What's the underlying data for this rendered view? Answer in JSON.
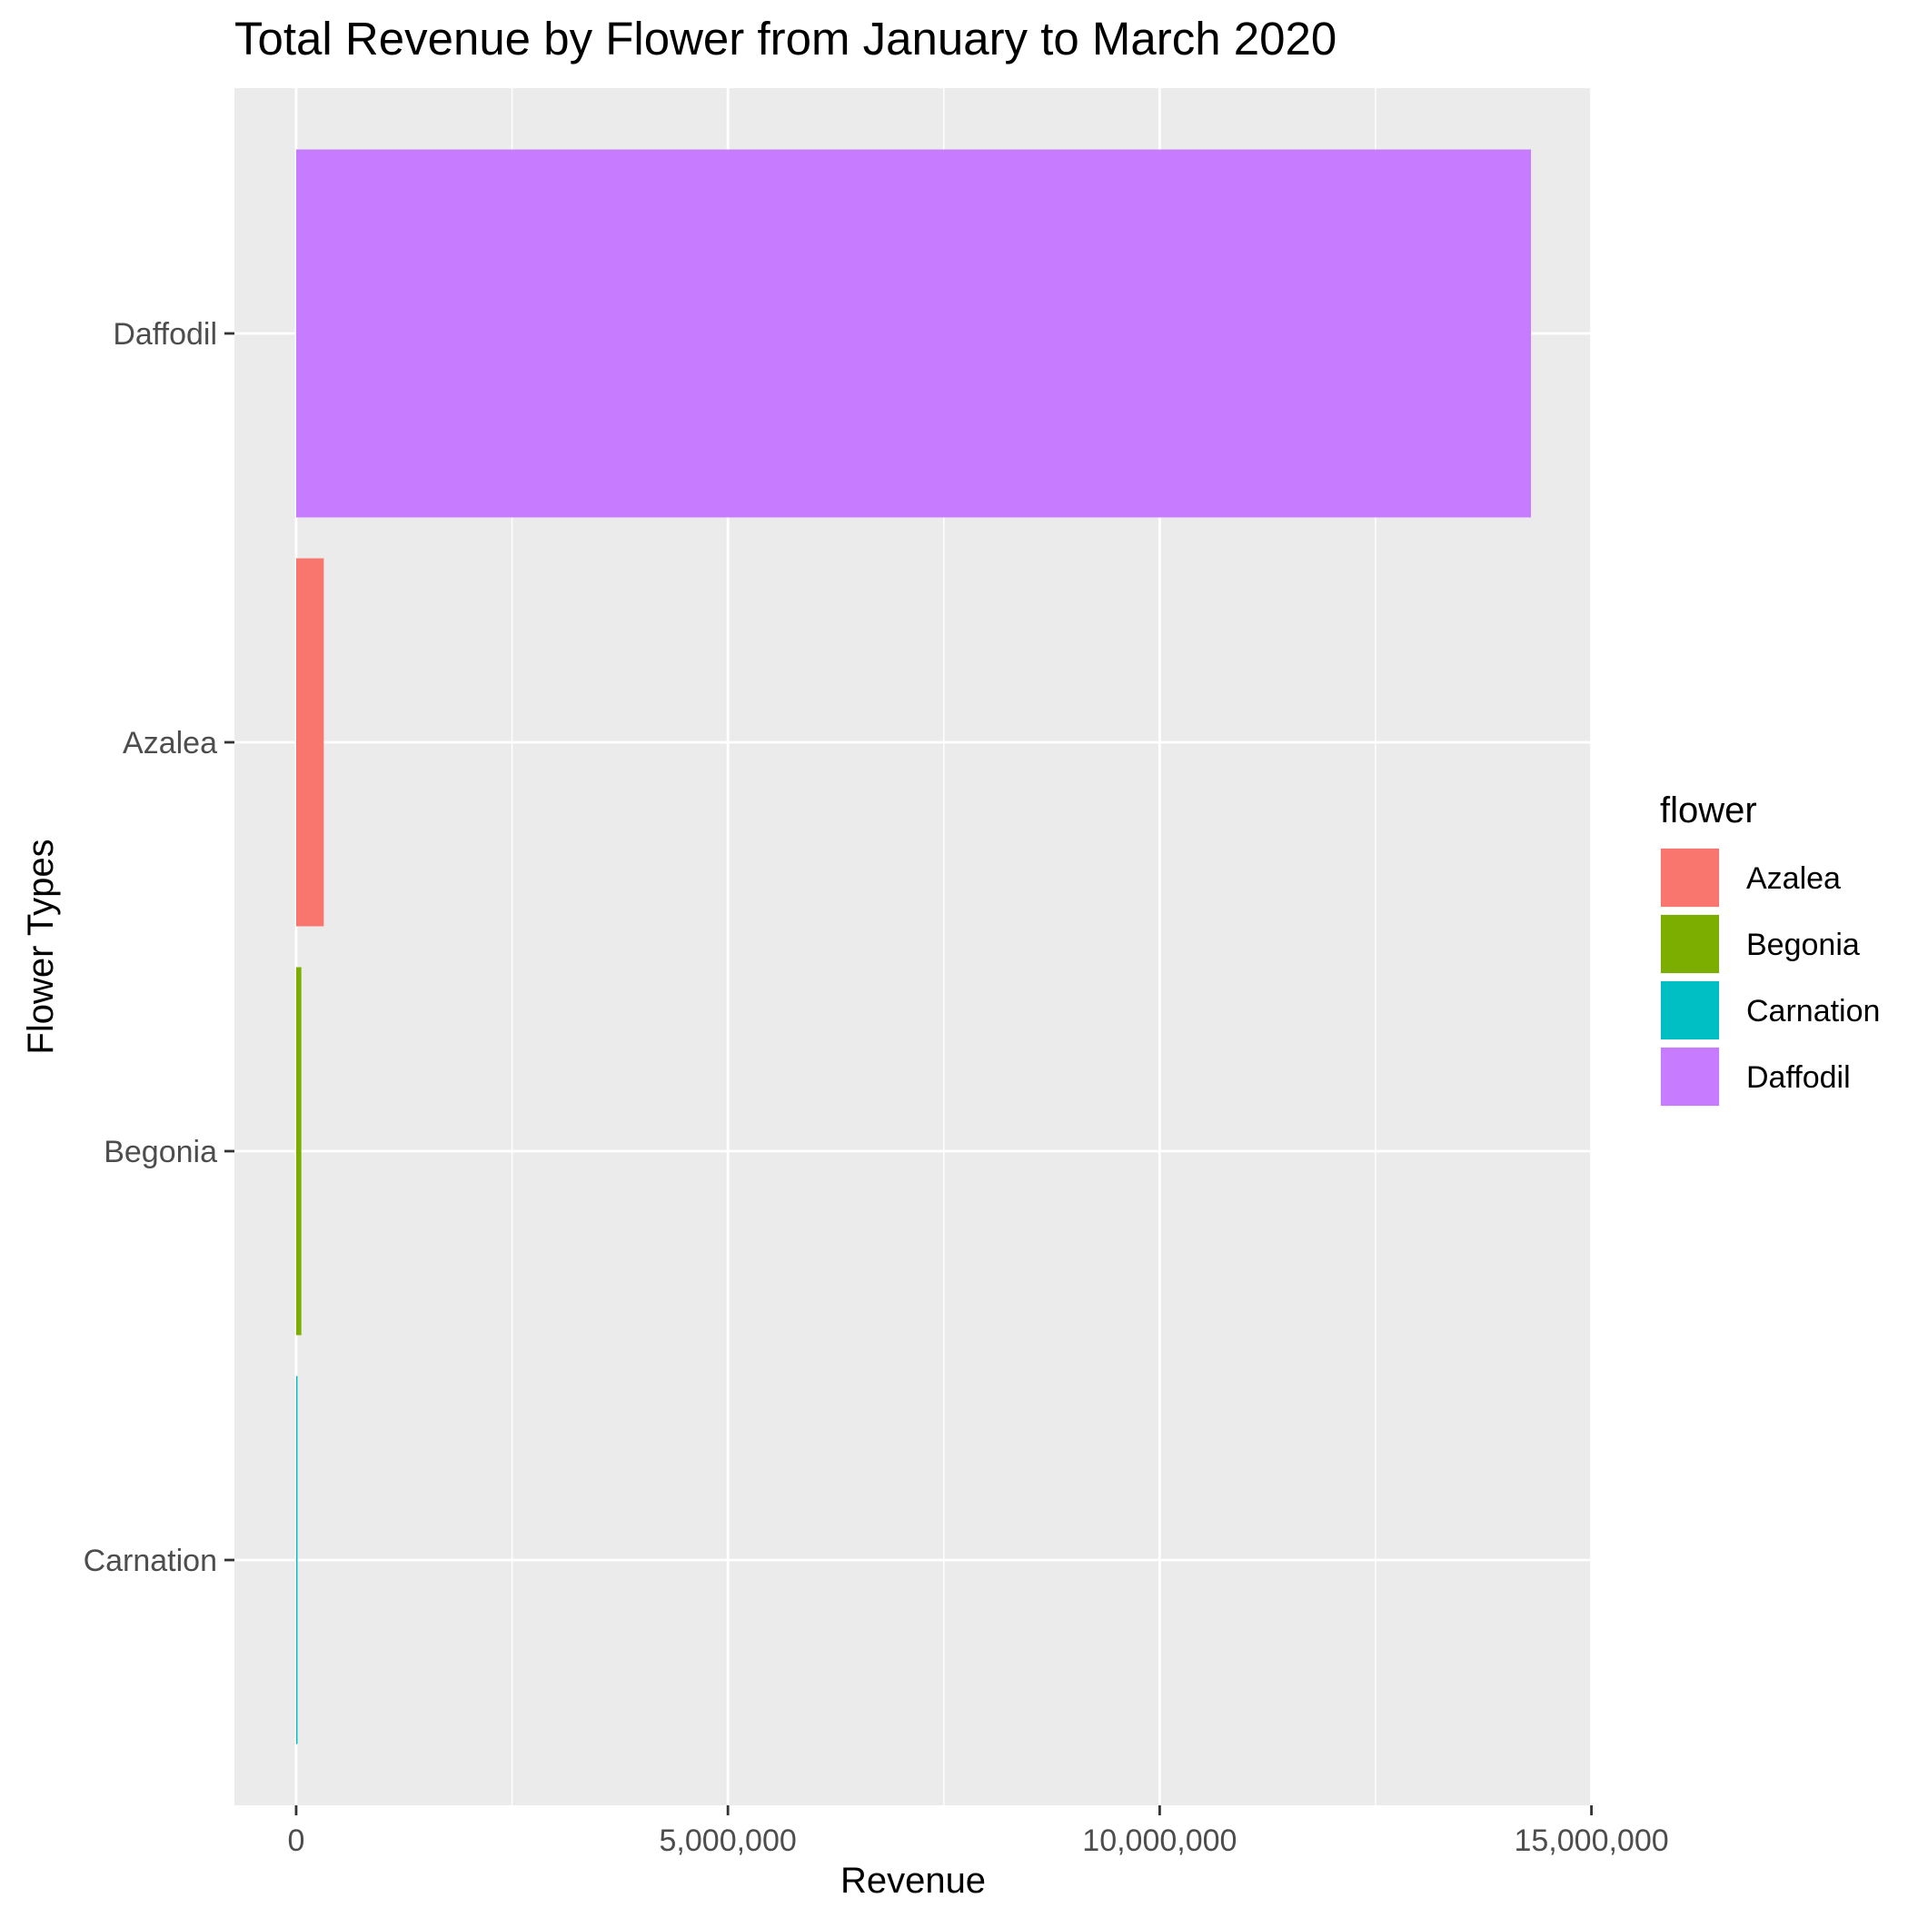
{
  "chart_data": {
    "type": "bar",
    "orientation": "horizontal",
    "title": "Total Revenue by Flower from January to March 2020",
    "xlabel": "Revenue",
    "ylabel": "Flower Types",
    "categories": [
      "Carnation",
      "Begonia",
      "Azalea",
      "Daffodil"
    ],
    "values": [
      10000,
      60000,
      320000,
      14300000
    ],
    "colors": {
      "Azalea": "#F8766D",
      "Begonia": "#7CAE00",
      "Carnation": "#00BFC4",
      "Daffodil": "#C77CFF"
    },
    "xlim": [
      -715000,
      15015000
    ],
    "x_ticks": [
      0,
      5000000,
      10000000,
      15000000
    ],
    "x_tick_labels": [
      "0",
      "5,000,000",
      "10,000,000",
      "15,000,000"
    ],
    "x_minor_ticks": [
      2500000,
      7500000,
      12500000
    ],
    "grid": true,
    "panel_background": "#EBEBEB",
    "grid_color": "#FFFFFF",
    "legend": {
      "title": "flower",
      "placement": "right",
      "entries": [
        "Azalea",
        "Begonia",
        "Carnation",
        "Daffodil"
      ]
    }
  }
}
